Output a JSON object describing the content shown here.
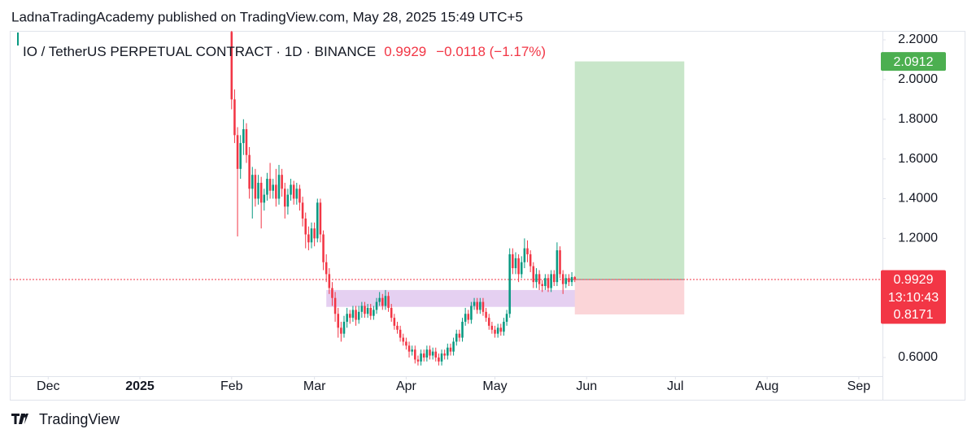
{
  "header": "LadnaTradingAcademy published on TradingView.com, May 28, 2025 15:49 UTC+5",
  "footer": "TradingView",
  "chart_data": {
    "type": "candlestick",
    "title": "IO / TetherUS PERPETUAL CONTRACT · 1D · BINANCE",
    "last_price": 0.9929,
    "change": "−0.0118 (−1.17%)",
    "countdown": "13:10:43",
    "up_color": "#089981",
    "down_color": "#f23645",
    "ylim": [
      0.506,
      2.245
    ],
    "yticks": [
      {
        "value": 0.6,
        "label": "0.6000"
      },
      {
        "value": 1.2,
        "label": "1.2000"
      },
      {
        "value": 1.4,
        "label": "1.4000"
      },
      {
        "value": 1.6,
        "label": "1.6000"
      },
      {
        "value": 1.8,
        "label": "1.8000"
      },
      {
        "value": 2.0,
        "label": "2.0000"
      },
      {
        "value": 2.2,
        "label": "2.2000"
      }
    ],
    "xlim": [
      -13,
      282
    ],
    "xticks": [
      {
        "value": 0,
        "label": "Dec"
      },
      {
        "value": 31,
        "label": "2025"
      },
      {
        "value": 62,
        "label": "Feb"
      },
      {
        "value": 90,
        "label": "Mar"
      },
      {
        "value": 121,
        "label": "Apr"
      },
      {
        "value": 151,
        "label": "May"
      },
      {
        "value": 182,
        "label": "Jun"
      },
      {
        "value": 212,
        "label": "Jul"
      },
      {
        "value": 243,
        "label": "Aug"
      },
      {
        "value": 274,
        "label": "Sep"
      }
    ],
    "x": [
      62,
      63,
      64,
      65,
      66,
      67,
      68,
      69,
      70,
      71,
      72,
      73,
      74,
      75,
      76,
      77,
      78,
      79,
      80,
      81,
      82,
      83,
      84,
      85,
      86,
      87,
      88,
      89,
      90,
      91,
      92,
      93,
      94,
      95,
      96,
      97,
      98,
      99,
      100,
      101,
      102,
      103,
      104,
      105,
      106,
      107,
      108,
      109,
      110,
      111,
      112,
      113,
      114,
      115,
      116,
      117,
      118,
      119,
      120,
      121,
      122,
      123,
      124,
      125,
      126,
      127,
      128,
      129,
      130,
      131,
      132,
      133,
      134,
      135,
      136,
      137,
      138,
      139,
      140,
      141,
      142,
      143,
      144,
      145,
      146,
      147,
      148,
      149,
      150,
      151,
      152,
      153,
      154,
      155,
      156,
      157,
      158,
      159,
      160,
      161,
      162,
      163,
      164,
      165,
      166,
      167,
      168,
      169,
      170,
      171,
      172,
      173,
      174,
      175,
      176,
      177,
      178
    ],
    "open": [
      2.24,
      1.9,
      1.72,
      1.55,
      1.68,
      1.75,
      1.62,
      1.45,
      1.52,
      1.4,
      1.48,
      1.38,
      1.42,
      1.5,
      1.44,
      1.47,
      1.4,
      1.52,
      1.45,
      1.36,
      1.42,
      1.47,
      1.4,
      1.45,
      1.38,
      1.3,
      1.22,
      1.18,
      1.25,
      1.2,
      1.38,
      1.22,
      1.08,
      1.02,
      0.95,
      0.9,
      0.82,
      0.75,
      0.72,
      0.78,
      0.82,
      0.8,
      0.84,
      0.79,
      0.83,
      0.86,
      0.82,
      0.85,
      0.81,
      0.84,
      0.88,
      0.9,
      0.86,
      0.91,
      0.85,
      0.8,
      0.76,
      0.74,
      0.7,
      0.68,
      0.66,
      0.63,
      0.64,
      0.59,
      0.58,
      0.62,
      0.6,
      0.64,
      0.61,
      0.63,
      0.6,
      0.58,
      0.62,
      0.61,
      0.65,
      0.63,
      0.68,
      0.72,
      0.7,
      0.78,
      0.82,
      0.79,
      0.86,
      0.88,
      0.84,
      0.88,
      0.83,
      0.8,
      0.76,
      0.74,
      0.72,
      0.75,
      0.73,
      0.78,
      0.82,
      1.12,
      1.05,
      1.1,
      1.02,
      1.08,
      1.15,
      1.12,
      1.06,
      0.98,
      1.02,
      0.97,
      0.96,
      1.0,
      0.95,
      1.02,
      0.98,
      1.14,
      1.02,
      0.97,
      1.0,
      0.98,
      1.005
    ],
    "high": [
      2.245,
      1.95,
      1.76,
      1.72,
      1.8,
      1.78,
      1.66,
      1.56,
      1.55,
      1.52,
      1.51,
      1.45,
      1.53,
      1.58,
      1.5,
      1.55,
      1.57,
      1.55,
      1.48,
      1.45,
      1.5,
      1.49,
      1.48,
      1.47,
      1.41,
      1.33,
      1.26,
      1.28,
      1.28,
      1.4,
      1.4,
      1.24,
      1.12,
      1.05,
      0.98,
      0.93,
      0.85,
      0.78,
      0.81,
      0.85,
      0.84,
      0.86,
      0.86,
      0.86,
      0.88,
      0.88,
      0.87,
      0.87,
      0.86,
      0.9,
      0.93,
      0.92,
      0.94,
      0.93,
      0.87,
      0.82,
      0.78,
      0.76,
      0.72,
      0.7,
      0.68,
      0.66,
      0.66,
      0.61,
      0.64,
      0.64,
      0.66,
      0.66,
      0.65,
      0.65,
      0.62,
      0.64,
      0.64,
      0.67,
      0.67,
      0.7,
      0.74,
      0.74,
      0.8,
      0.85,
      0.84,
      0.88,
      0.9,
      0.9,
      0.9,
      0.9,
      0.85,
      0.82,
      0.78,
      0.76,
      0.77,
      0.77,
      0.8,
      0.84,
      1.15,
      1.15,
      1.13,
      1.12,
      1.11,
      1.2,
      1.19,
      1.14,
      1.08,
      1.05,
      1.04,
      0.99,
      1.02,
      1.02,
      1.04,
      1.04,
      1.18,
      1.16,
      1.04,
      1.02,
      1.02,
      1.03,
      1.01
    ],
    "low": [
      1.85,
      1.68,
      1.21,
      1.5,
      1.62,
      1.58,
      1.4,
      1.3,
      1.36,
      1.37,
      1.25,
      1.34,
      1.39,
      1.4,
      1.4,
      1.36,
      1.37,
      1.41,
      1.3,
      1.32,
      1.39,
      1.37,
      1.37,
      1.34,
      1.26,
      1.15,
      1.14,
      1.15,
      1.16,
      1.18,
      1.18,
      1.04,
      0.98,
      0.92,
      0.86,
      0.78,
      0.7,
      0.68,
      0.7,
      0.75,
      0.77,
      0.78,
      0.76,
      0.77,
      0.8,
      0.8,
      0.8,
      0.79,
      0.79,
      0.82,
      0.86,
      0.84,
      0.84,
      0.83,
      0.78,
      0.74,
      0.72,
      0.68,
      0.66,
      0.64,
      0.6,
      0.61,
      0.57,
      0.56,
      0.56,
      0.58,
      0.58,
      0.59,
      0.59,
      0.58,
      0.56,
      0.56,
      0.59,
      0.59,
      0.61,
      0.61,
      0.66,
      0.68,
      0.68,
      0.76,
      0.77,
      0.77,
      0.84,
      0.82,
      0.82,
      0.81,
      0.78,
      0.74,
      0.72,
      0.7,
      0.7,
      0.71,
      0.71,
      0.76,
      0.8,
      1.02,
      1.02,
      0.98,
      1.0,
      1.05,
      1.08,
      1.03,
      0.95,
      0.95,
      0.94,
      0.93,
      0.94,
      0.93,
      0.93,
      0.96,
      0.96,
      1.0,
      0.92,
      0.95,
      0.96,
      0.96,
      0.98
    ],
    "close": [
      1.9,
      1.72,
      1.55,
      1.68,
      1.75,
      1.62,
      1.45,
      1.52,
      1.4,
      1.48,
      1.38,
      1.42,
      1.5,
      1.44,
      1.47,
      1.4,
      1.52,
      1.45,
      1.36,
      1.42,
      1.47,
      1.4,
      1.45,
      1.38,
      1.3,
      1.22,
      1.18,
      1.25,
      1.2,
      1.38,
      1.22,
      1.08,
      1.02,
      0.95,
      0.9,
      0.82,
      0.75,
      0.72,
      0.78,
      0.82,
      0.8,
      0.84,
      0.79,
      0.83,
      0.86,
      0.82,
      0.85,
      0.81,
      0.84,
      0.88,
      0.9,
      0.86,
      0.91,
      0.85,
      0.8,
      0.76,
      0.74,
      0.7,
      0.68,
      0.66,
      0.63,
      0.64,
      0.59,
      0.58,
      0.62,
      0.6,
      0.64,
      0.61,
      0.63,
      0.6,
      0.58,
      0.62,
      0.61,
      0.65,
      0.63,
      0.68,
      0.72,
      0.7,
      0.78,
      0.82,
      0.79,
      0.86,
      0.88,
      0.84,
      0.88,
      0.83,
      0.8,
      0.76,
      0.74,
      0.72,
      0.75,
      0.73,
      0.78,
      0.82,
      1.12,
      1.05,
      1.1,
      1.02,
      1.08,
      1.15,
      1.12,
      1.06,
      0.98,
      1.02,
      0.97,
      0.96,
      1.0,
      0.95,
      1.02,
      0.98,
      1.14,
      1.02,
      0.97,
      1.0,
      0.98,
      1.005,
      0.9929
    ],
    "zone": {
      "x": [
        94,
        181
      ],
      "range": [
        0.855,
        0.94
      ],
      "color": "#e1c8ef"
    },
    "position": {
      "x": [
        178,
        215
      ],
      "target": 2.0912,
      "entry": 0.9929,
      "stop": 0.8171,
      "profit_color": "#c8e6c9",
      "loss_color": "#fbd5d8",
      "target_color": "#4caf50",
      "stop_color": "#f23645"
    }
  }
}
